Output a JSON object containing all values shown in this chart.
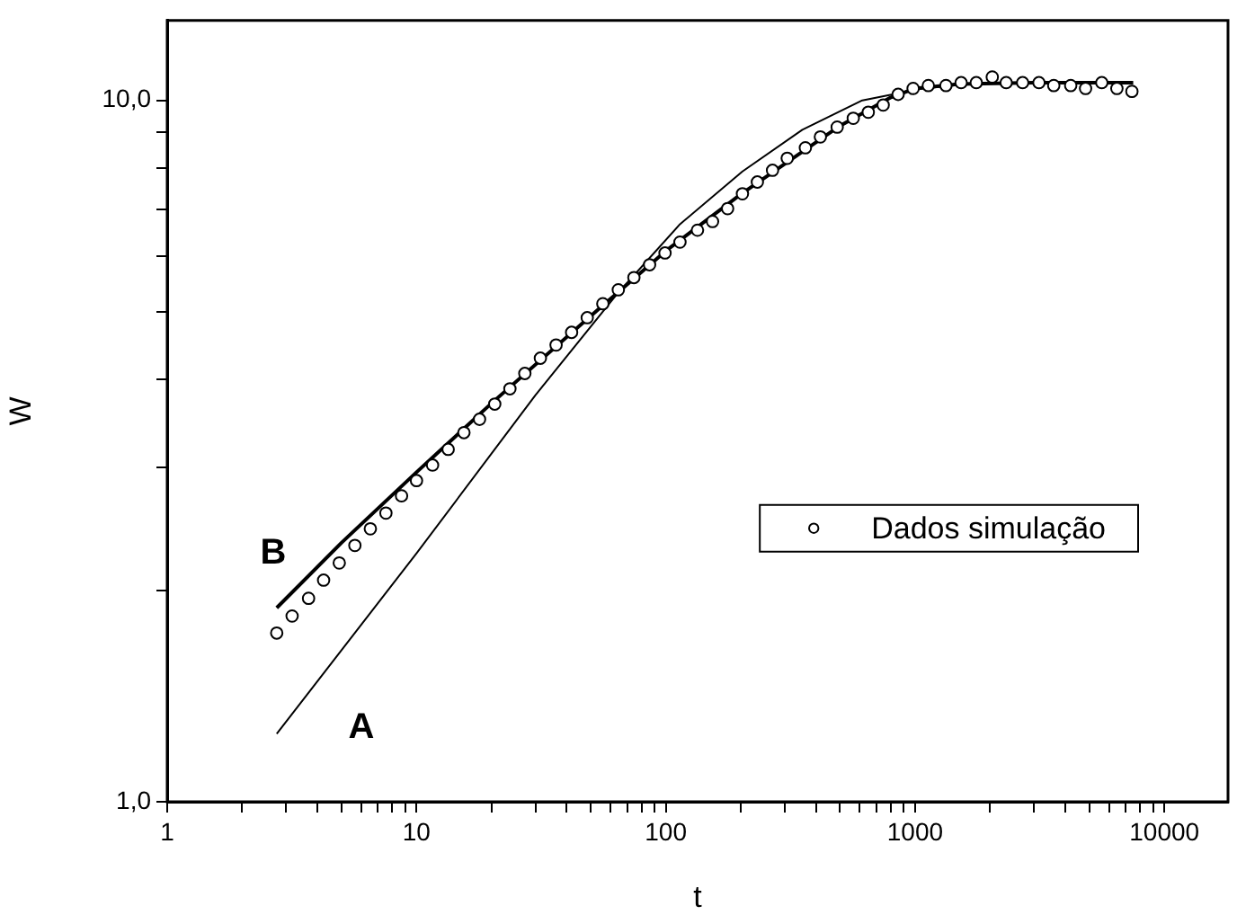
{
  "chart_data": {
    "type": "scatter",
    "xlabel": "t",
    "ylabel": "W",
    "log": "xy",
    "grid": false,
    "legend": "right",
    "xlim": [
      1,
      18000
    ],
    "ylim": [
      1,
      13
    ],
    "xticks": [
      1,
      {
        "value": 2,
        "label": null
      },
      {
        "value": 3,
        "label": null
      },
      {
        "value": 4,
        "label": null
      },
      {
        "value": 5,
        "label": null
      },
      {
        "value": 6,
        "label": null
      },
      {
        "value": 7,
        "label": null
      },
      {
        "value": 8,
        "label": null
      },
      {
        "value": 9,
        "label": null
      },
      10,
      {
        "value": 20,
        "label": null
      },
      {
        "value": 30,
        "label": null
      },
      {
        "value": 40,
        "label": null
      },
      {
        "value": 50,
        "label": null
      },
      {
        "value": 60,
        "label": null
      },
      {
        "value": 70,
        "label": null
      },
      {
        "value": 80,
        "label": null
      },
      {
        "value": 90,
        "label": null
      },
      100,
      {
        "value": 200,
        "label": null
      },
      {
        "value": 300,
        "label": null
      },
      {
        "value": 400,
        "label": null
      },
      {
        "value": 500,
        "label": null
      },
      {
        "value": 600,
        "label": null
      },
      {
        "value": 700,
        "label": null
      },
      {
        "value": 800,
        "label": null
      },
      {
        "value": 900,
        "label": null
      },
      1000,
      {
        "value": 2000,
        "label": null
      },
      {
        "value": 3000,
        "label": null
      },
      {
        "value": 4000,
        "label": null
      },
      {
        "value": 5000,
        "label": null
      },
      {
        "value": 6000,
        "label": null
      },
      {
        "value": 7000,
        "label": null
      },
      {
        "value": 8000,
        "label": null
      },
      {
        "value": 9000,
        "label": null
      },
      10000
    ],
    "yticks": [
      {
        "value": 1,
        "label": "1,0"
      },
      {
        "value": 2,
        "label": null
      },
      {
        "value": 3,
        "label": null
      },
      {
        "value": 4,
        "label": null
      },
      {
        "value": 5,
        "label": null
      },
      {
        "value": 6,
        "label": null
      },
      {
        "value": 7,
        "label": null
      },
      {
        "value": 8,
        "label": null
      },
      {
        "value": 9,
        "label": null
      },
      {
        "value": 10,
        "label": "10,0"
      }
    ],
    "series": [
      {
        "name": "Dados simulação",
        "marker": "circle",
        "color": "#000000",
        "x": [
          2.75,
          3.17,
          3.69,
          4.24,
          4.9,
          5.66,
          6.53,
          7.54,
          8.71,
          10,
          11.6,
          13.4,
          15.5,
          17.9,
          20.6,
          23.7,
          27.2,
          31.4,
          36.3,
          41.9,
          48.4,
          55.9,
          64.5,
          74.5,
          86.1,
          99.3,
          114,
          134,
          154,
          177,
          203,
          233,
          268,
          307,
          363,
          417,
          487,
          565,
          649,
          745,
          855,
          982,
          1130,
          1330,
          1530,
          1760,
          2040,
          2320,
          2700,
          3140,
          3600,
          4210,
          4830,
          5610,
          6450,
          7410
        ],
        "values": [
          1.74,
          1.84,
          1.95,
          2.07,
          2.19,
          2.32,
          2.45,
          2.58,
          2.73,
          2.87,
          3.02,
          3.18,
          3.36,
          3.51,
          3.69,
          3.88,
          4.08,
          4.29,
          4.48,
          4.67,
          4.9,
          5.13,
          5.37,
          5.59,
          5.83,
          6.06,
          6.28,
          6.53,
          6.72,
          7.01,
          7.36,
          7.65,
          7.95,
          8.27,
          8.56,
          8.87,
          9.16,
          9.43,
          9.62,
          9.85,
          10.2,
          10.4,
          10.5,
          10.5,
          10.6,
          10.6,
          10.8,
          10.6,
          10.6,
          10.6,
          10.5,
          10.5,
          10.4,
          10.6,
          10.4,
          10.3
        ]
      },
      {
        "name": "B",
        "type": "line",
        "marker": "none",
        "line_style": "solid",
        "color": "#000000",
        "x": [
          2.75,
          5,
          10,
          20,
          50,
          100,
          200,
          500,
          800,
          1000,
          1500,
          3000,
          7500
        ],
        "values": [
          1.89,
          2.34,
          2.95,
          3.7,
          4.93,
          6.1,
          7.35,
          9.2,
          10.1,
          10.4,
          10.55,
          10.6,
          10.6
        ]
      },
      {
        "name": "A",
        "type": "line",
        "marker": "none",
        "line_style": "solid",
        "color": "#000000",
        "x": [
          2.75,
          10,
          30,
          63,
          114,
          203,
          353,
          614,
          1070,
          1850,
          7410
        ],
        "values": [
          1.25,
          2.26,
          3.8,
          5.27,
          6.66,
          7.92,
          9.08,
          10,
          10.4,
          10.6,
          10.6
        ]
      }
    ]
  }
}
